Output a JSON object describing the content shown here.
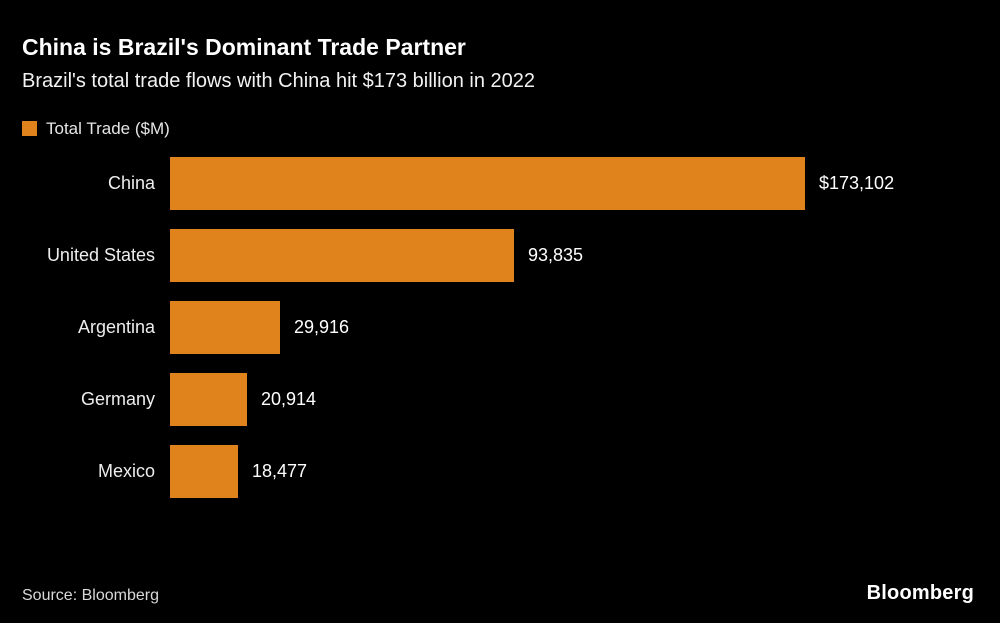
{
  "header": {
    "title": "China is Brazil's Dominant Trade Partner",
    "subtitle": "Brazil's total trade flows with China hit $173 billion in 2022"
  },
  "legend": {
    "label": "Total Trade ($M)",
    "swatch_color": "#E0831D"
  },
  "chart_data": {
    "type": "bar",
    "orientation": "horizontal",
    "title": "China is Brazil's Dominant Trade Partner",
    "subtitle": "Brazil's total trade flows with China hit $173 billion in 2022",
    "series_name": "Total Trade ($M)",
    "categories": [
      "China",
      "United States",
      "Argentina",
      "Germany",
      "Mexico"
    ],
    "values": [
      173102,
      93835,
      29916,
      20914,
      18477
    ],
    "value_labels": [
      "$173,102",
      "93,835",
      "29,916",
      "20,914",
      "18,477"
    ],
    "bar_color": "#E0831D",
    "xlim": [
      0,
      180000
    ],
    "grid": false,
    "legend_position": "top-left"
  },
  "footer": {
    "source": "Source: Bloomberg",
    "brand": "Bloomberg"
  }
}
